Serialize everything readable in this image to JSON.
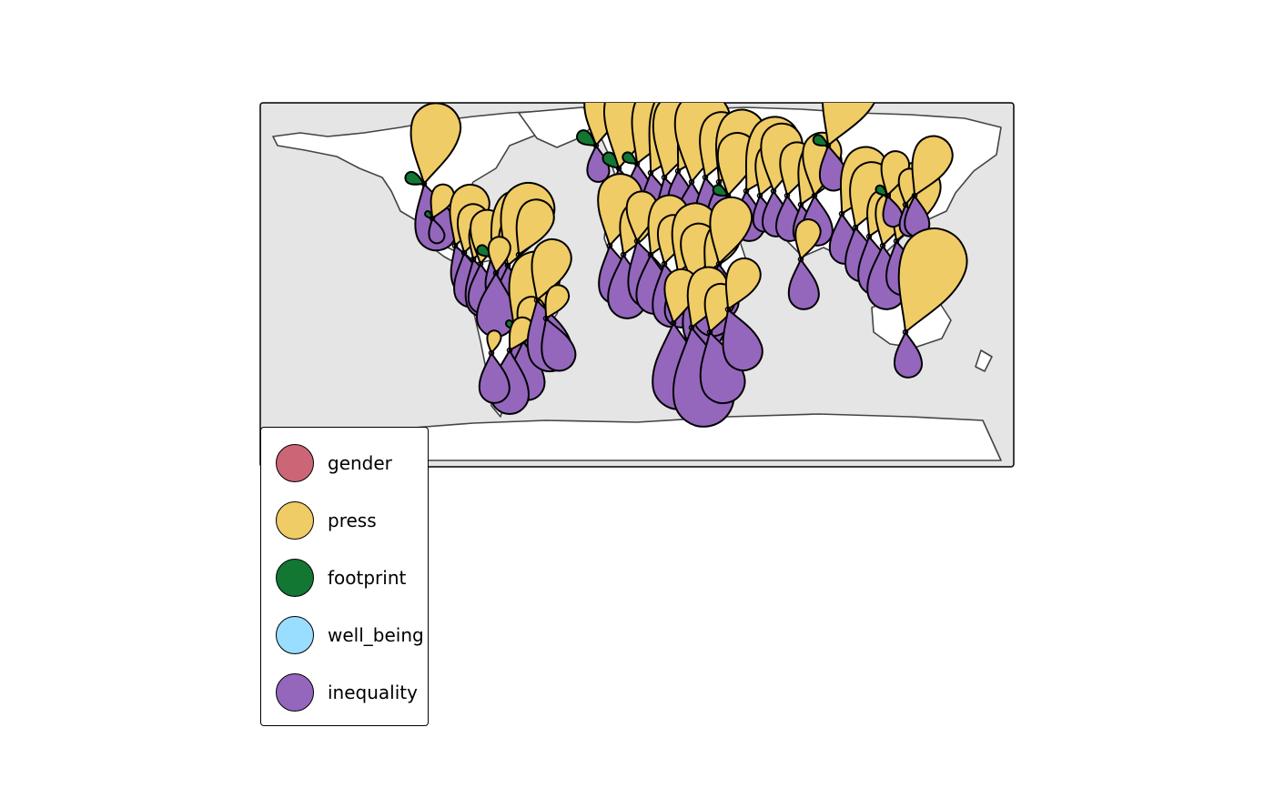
{
  "legend": {
    "items": [
      {
        "label": "gender",
        "color": "#CC6677"
      },
      {
        "label": "press",
        "color": "#F0CC66"
      },
      {
        "label": "footprint",
        "color": "#117733"
      },
      {
        "label": "well_being",
        "color": "#99DDFF"
      },
      {
        "label": "inequality",
        "color": "#9467BD"
      }
    ]
  },
  "colors": {
    "ocean": "#e5e5e5",
    "land": "#ffffff",
    "coastline": "#444444",
    "frame": "#000000"
  }
}
